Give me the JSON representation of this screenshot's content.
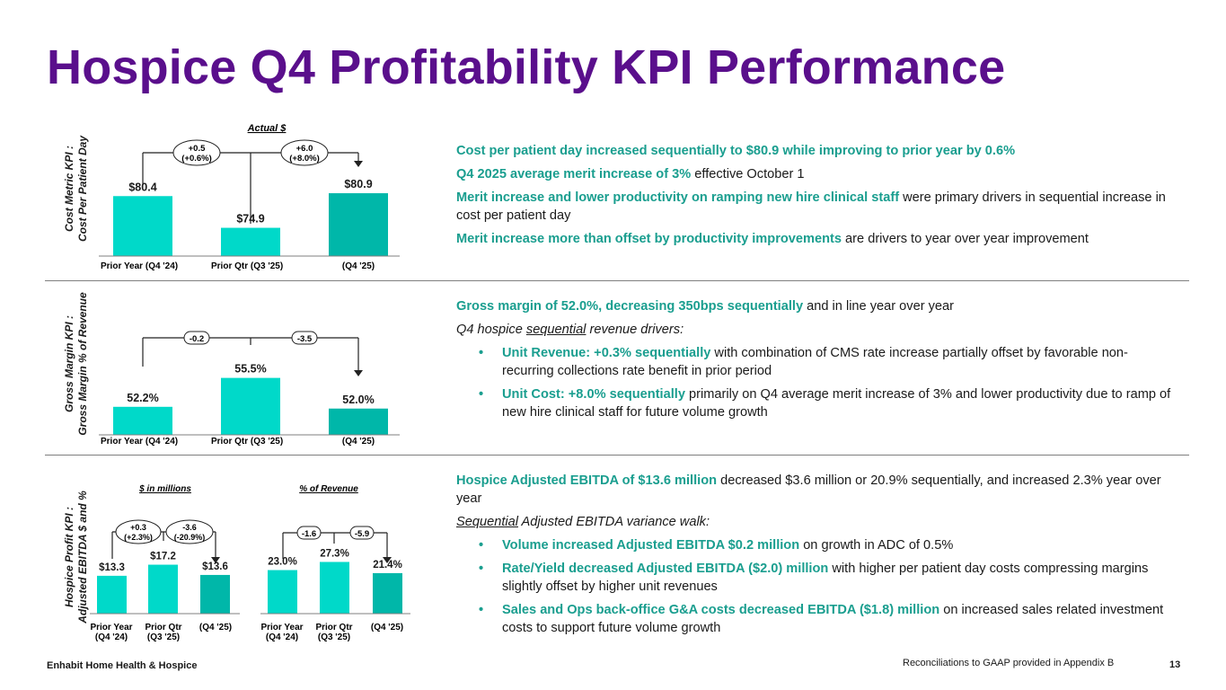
{
  "title": "Hospice Q4 Profitability KPI Performance",
  "colors": {
    "title": "#5a0f8c",
    "accent_text": "#1a9e8f",
    "bar_light": "#00d9c9",
    "bar_dark": "#00b7a9"
  },
  "section1": {
    "ylabel_line1": "Cost Metric KPI :",
    "ylabel_line2": "Cost Per Patient Day",
    "chart_subtitle": "Actual $",
    "bubble1_line1": "+0.5",
    "bubble1_line2": "(+0.6%)",
    "bubble2_line1": "+6.0",
    "bubble2_line2": "(+8.0%)",
    "text": {
      "p1": "Cost per patient day increased sequentially to $80.9 while improving to prior year by 0.6%",
      "p2_bold": "Q4 2025 average merit increase of 3%",
      "p2_rest": " effective October 1",
      "p3_bold": "Merit increase and lower productivity on ramping new hire clinical staff",
      "p3_rest": " were primary drivers in sequential increase in cost per patient day",
      "p4_bold": "Merit increase more than offset by productivity improvements",
      "p4_rest": " are drivers to year over year improvement"
    }
  },
  "section2": {
    "ylabel_line1": "Gross Margin KPI :",
    "ylabel_line2": "Gross Margin % of Revenue",
    "bubble1": "-0.2",
    "bubble2": "-3.5",
    "text": {
      "p1_bold": "Gross margin of 52.0%, decreasing 350bps sequentially",
      "p1_rest": " and in line year over year",
      "p2_pre": "Q4 hospice ",
      "p2_ul": "sequential",
      "p2_post": " revenue drivers:",
      "b1_bold": "Unit Revenue: +0.3% sequentially",
      "b1_rest": " with combination of CMS rate increase partially offset by favorable non-recurring collections rate benefit in prior period",
      "b2_bold": "Unit Cost: +8.0% sequentially",
      "b2_rest": " primarily on Q4 average merit increase of 3% and lower productivity due to ramp of new hire clinical staff for future volume growth"
    }
  },
  "section3": {
    "ylabel_line1": "Hospice Profit KPI :",
    "ylabel_line2": "Adjusted EBITDA $ and %",
    "left_subtitle": "$ in millions",
    "right_subtitle": "% of Revenue",
    "left_bubble1_line1": "+0.3",
    "left_bubble1_line2": "(+2.3%)",
    "left_bubble2_line1": "-3.6",
    "left_bubble2_line2": "(-20.9%)",
    "right_bubble1": "-1.6",
    "right_bubble2": "-5.9",
    "text": {
      "p1_bold": "Hospice Adjusted EBITDA of $13.6 million",
      "p1_rest": " decreased $3.6 million or 20.9% sequentially, and increased 2.3% year over year",
      "p2_ul": "Sequential",
      "p2_rest": " Adjusted EBITDA variance walk:",
      "b1_bold": "Volume increased Adjusted EBITDA $0.2 million",
      "b1_rest": " on growth in ADC of 0.5%",
      "b2_bold": "Rate/Yield decreased Adjusted EBITDA ($2.0) million",
      "b2_rest": " with higher per patient day costs compressing margins slightly offset by higher unit revenues",
      "b3_bold": "Sales and Ops back-office G&A costs decreased EBITDA ($1.8) million",
      "b3_rest": " on increased sales related investment costs to support future volume growth"
    }
  },
  "chart_data": [
    {
      "type": "bar",
      "title": "Actual $",
      "ylabel": "Cost Per Patient Day",
      "categories": [
        "Prior Year (Q4 '24)",
        "Prior Qtr (Q3 '25)",
        "(Q4 '25)"
      ],
      "values": [
        80.4,
        74.9,
        80.9
      ],
      "value_labels": [
        "$80.4",
        "$74.9",
        "$80.9"
      ],
      "ylim": [
        70,
        82
      ]
    },
    {
      "type": "bar",
      "title": "",
      "ylabel": "Gross Margin % of Revenue",
      "categories": [
        "Prior Year (Q4 '24)",
        "Prior Qtr (Q3 '25)",
        "(Q4 '25)"
      ],
      "values": [
        52.2,
        55.5,
        52.0
      ],
      "value_labels": [
        "52.2%",
        "55.5%",
        "52.0%"
      ],
      "ylim": [
        49,
        57
      ]
    },
    {
      "type": "bar",
      "title": "$ in millions",
      "ylabel": "Adjusted EBITDA $",
      "categories": [
        "Prior Year (Q4 '24)",
        "Prior Qtr (Q3 '25)",
        "(Q4 '25)"
      ],
      "values": [
        13.3,
        17.2,
        13.6
      ],
      "value_labels": [
        "$13.3",
        "$17.2",
        "$13.6"
      ],
      "ylim": [
        0,
        18
      ]
    },
    {
      "type": "bar",
      "title": "% of Revenue",
      "ylabel": "Adjusted EBITDA %",
      "categories": [
        "Prior Year (Q4 '24)",
        "Prior Qtr (Q3 '25)",
        "(Q4 '25)"
      ],
      "values": [
        23.0,
        27.3,
        21.4
      ],
      "value_labels": [
        "23.0%",
        "27.3%",
        "21.4%"
      ],
      "ylim": [
        0,
        28
      ]
    }
  ],
  "cat_labels": {
    "py": "Prior Year",
    "py_q": "(Q4 '24)",
    "pq": "Prior Qtr",
    "pq_q": "(Q3 '25)",
    "q4": "(Q4 '25)"
  },
  "footer": {
    "company": "Enhabit Home Health & Hospice",
    "note": "Reconciliations to GAAP provided in Appendix B",
    "page": "13"
  }
}
